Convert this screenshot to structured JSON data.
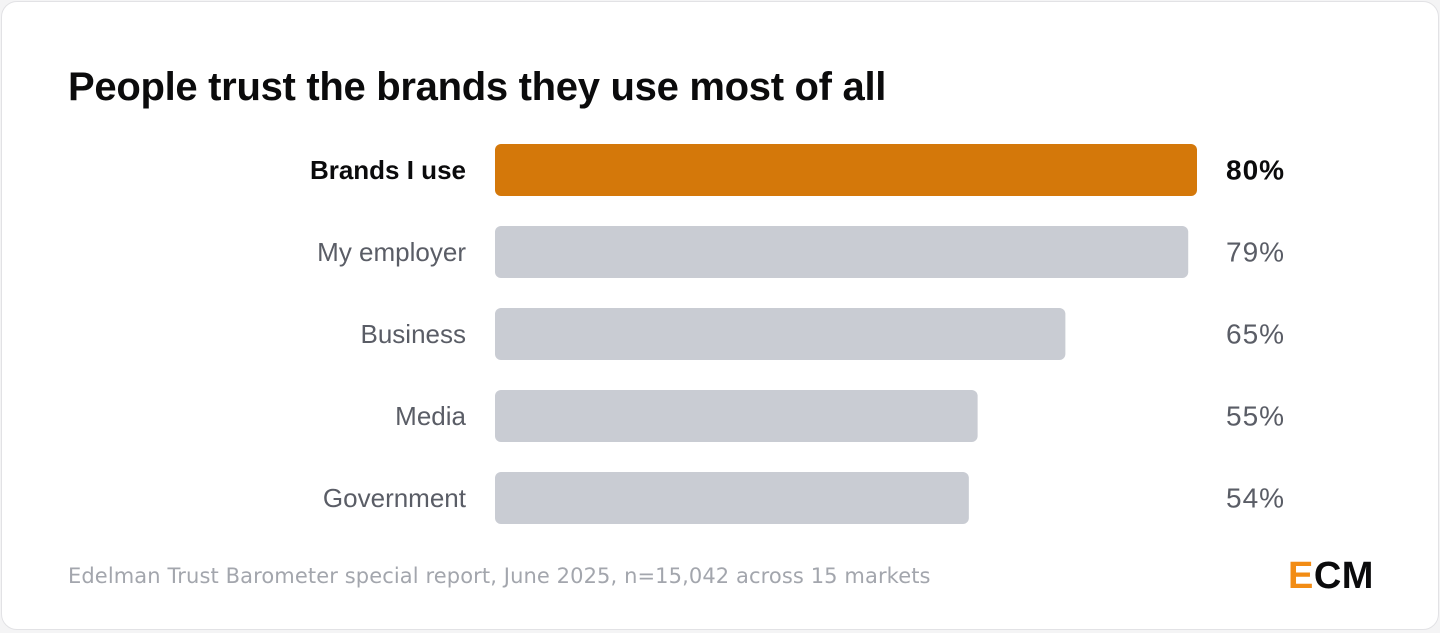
{
  "title": "People trust the brands they use most of all",
  "footer_note": "Edelman Trust Barometer special report, June 2025, n=15,042 across 15 markets",
  "logo": {
    "accent_letter": "E",
    "rest": "CM",
    "accent_color": "#f28c14"
  },
  "colors": {
    "highlight_bar": "#d4780a",
    "default_bar": "#c9ccd3",
    "highlight_text": "#0b0b0c",
    "default_text": "#5a5d66"
  },
  "chart_data": {
    "type": "bar",
    "orientation": "horizontal",
    "categories": [
      "Brands I use",
      "My employer",
      "Business",
      "Media",
      "Government"
    ],
    "values": [
      80,
      79,
      65,
      55,
      54
    ],
    "value_labels": [
      "80%",
      "79%",
      "65%",
      "55%",
      "54%"
    ],
    "highlight_index": 0,
    "unit": "%",
    "xlim": [
      0,
      80
    ],
    "grid": false,
    "legend": "none"
  }
}
